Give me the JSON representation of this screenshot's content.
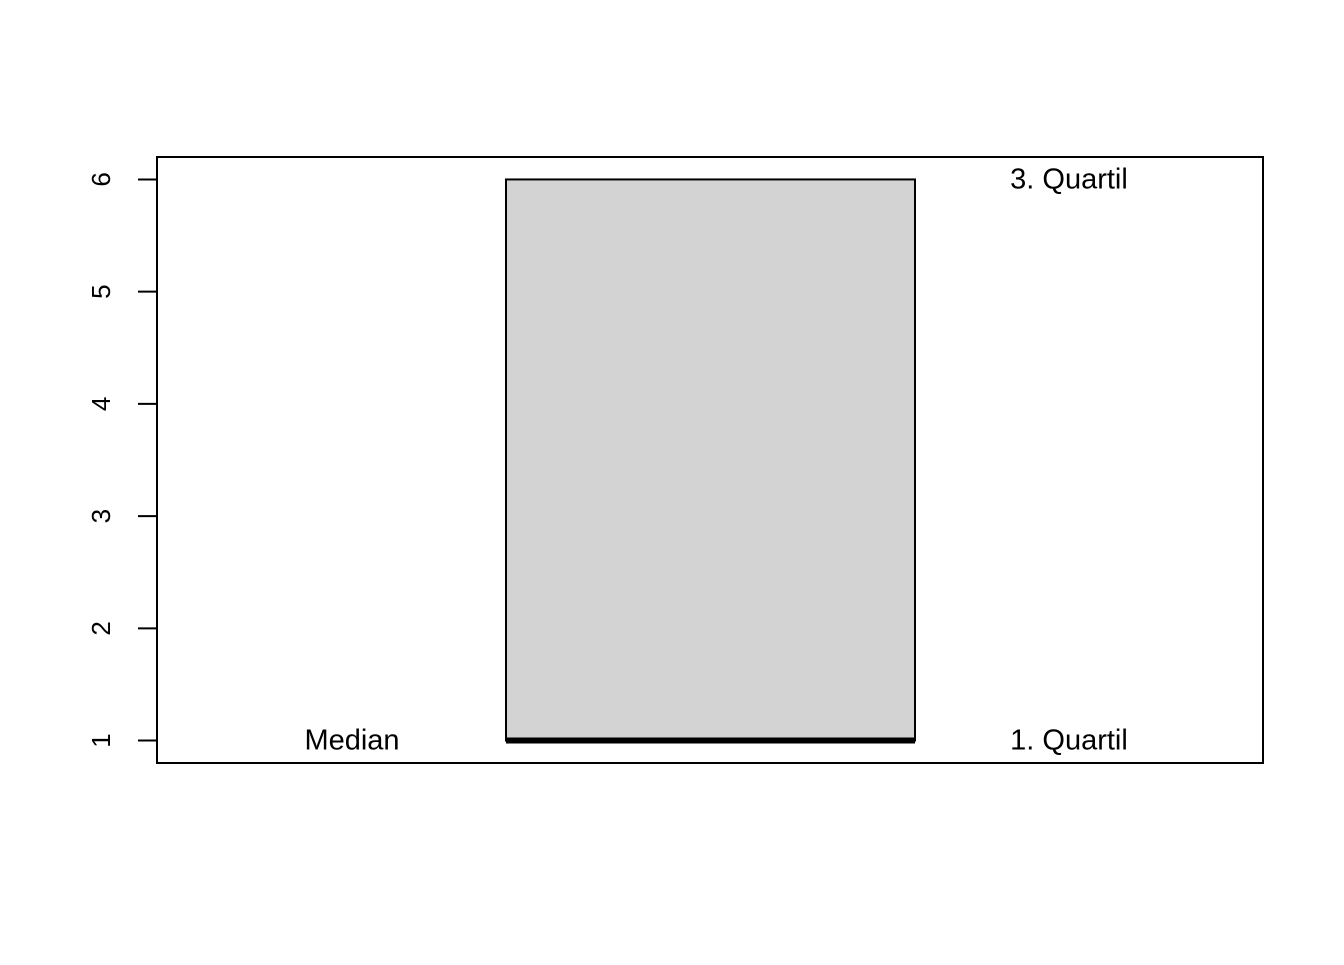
{
  "chart_data": {
    "type": "boxplot",
    "title": "",
    "xlabel": "",
    "ylabel": "",
    "ylim": [
      0.8,
      6.2
    ],
    "yticks": [
      1,
      2,
      3,
      4,
      5,
      6
    ],
    "grid": false,
    "box": {
      "q1": 1,
      "median": 1,
      "q3": 6,
      "fill": "#d3d3d3"
    },
    "annotations": [
      {
        "text": "Median",
        "y": 1,
        "side": "left"
      },
      {
        "text": "1. Quartil",
        "y": 1,
        "side": "right"
      },
      {
        "text": "3. Quartil",
        "y": 6,
        "side": "right"
      }
    ]
  }
}
